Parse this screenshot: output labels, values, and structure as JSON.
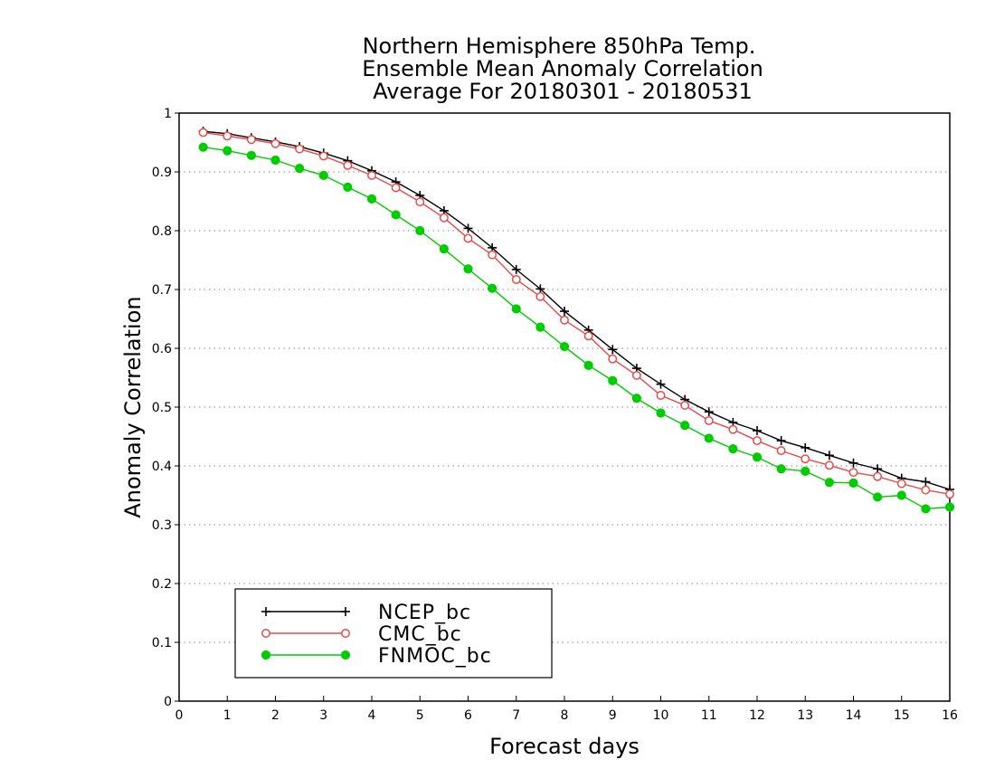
{
  "chart_data": {
    "type": "line",
    "title_lines": [
      "Northern Hemisphere 850hPa Temp.",
      "Ensemble Mean Anomaly Correlation",
      "Average For 20180301 - 20180531"
    ],
    "xlabel": "Forecast days",
    "ylabel": "Anomaly Correlation",
    "xlim": [
      0,
      16
    ],
    "ylim": [
      0,
      1
    ],
    "xticks": [
      "0",
      "1",
      "2",
      "3",
      "4",
      "5",
      "6",
      "7",
      "8",
      "9",
      "10",
      "11",
      "12",
      "13",
      "14",
      "15",
      "16"
    ],
    "yticks": [
      "0",
      "0.1",
      "0.2",
      "0.3",
      "0.4",
      "0.5",
      "0.6",
      "0.7",
      "0.8",
      "0.9",
      "1"
    ],
    "grid": "dotted horizontal",
    "legend_position": "bottom-left",
    "x": [
      0.5,
      1,
      1.5,
      2,
      2.5,
      3,
      3.5,
      4,
      4.5,
      5,
      5.5,
      6,
      6.5,
      7,
      7.5,
      8,
      8.5,
      9,
      9.5,
      10,
      10.5,
      11,
      11.5,
      12,
      12.5,
      13,
      13.5,
      14,
      14.5,
      15,
      15.5,
      16
    ],
    "series": [
      {
        "name": "NCEP_bc",
        "color": "#000000",
        "marker": "plus",
        "values": [
          0.969,
          0.965,
          0.958,
          0.951,
          0.943,
          0.932,
          0.919,
          0.902,
          0.883,
          0.86,
          0.834,
          0.804,
          0.771,
          0.734,
          0.701,
          0.663,
          0.631,
          0.598,
          0.566,
          0.539,
          0.513,
          0.492,
          0.474,
          0.46,
          0.443,
          0.431,
          0.418,
          0.405,
          0.395,
          0.379,
          0.373,
          0.36
        ]
      },
      {
        "name": "CMC_bc",
        "color": "#e84a4a",
        "marker": "open-circle",
        "values": [
          0.967,
          0.961,
          0.955,
          0.948,
          0.939,
          0.927,
          0.911,
          0.894,
          0.873,
          0.849,
          0.822,
          0.787,
          0.759,
          0.717,
          0.688,
          0.648,
          0.621,
          0.582,
          0.554,
          0.52,
          0.503,
          0.477,
          0.462,
          0.443,
          0.426,
          0.412,
          0.401,
          0.389,
          0.382,
          0.37,
          0.359,
          0.352
        ]
      },
      {
        "name": "FNMOC_bc",
        "color": "#00cc00",
        "marker": "filled-circle",
        "values": [
          0.942,
          0.936,
          0.928,
          0.92,
          0.906,
          0.894,
          0.874,
          0.854,
          0.827,
          0.8,
          0.769,
          0.735,
          0.702,
          0.667,
          0.636,
          0.603,
          0.571,
          0.545,
          0.515,
          0.49,
          0.469,
          0.447,
          0.429,
          0.415,
          0.395,
          0.391,
          0.372,
          0.371,
          0.347,
          0.35,
          0.327,
          0.33
        ]
      }
    ]
  }
}
